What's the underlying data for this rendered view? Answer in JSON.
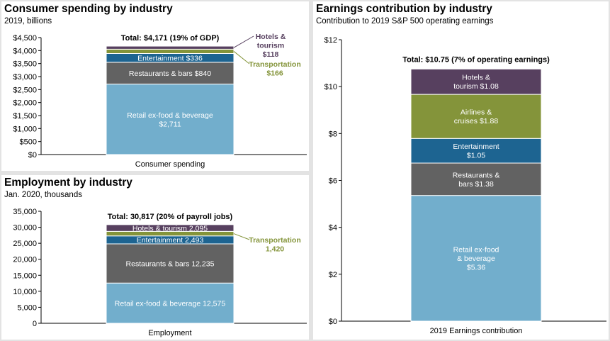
{
  "chart_data": [
    {
      "type": "bar",
      "stacked": true,
      "title": "Consumer spending by industry",
      "subtitle": "2019, billions",
      "categories": [
        "Consumer spending"
      ],
      "total_label": "Total: $4,171 (19% of GDP)",
      "yticks": [
        "$0",
        "$500",
        "$1,000",
        "$1,500",
        "$2,000",
        "$2,500",
        "$3,000",
        "$3,500",
        "$4,000",
        "$4,500"
      ],
      "ylim": [
        0,
        4500
      ],
      "grid": false,
      "series": [
        {
          "name": "Retail ex-food & beverage",
          "values": [
            2711
          ],
          "color": "#72aecc",
          "label_lines": [
            "Retail ex-food & beverage",
            "$2,711"
          ],
          "label_color": "#ffffff"
        },
        {
          "name": "Restaurants & bars",
          "values": [
            840
          ],
          "color": "#626262",
          "label_lines": [
            "Restaurants & bars  $840"
          ],
          "label_color": "#ffffff"
        },
        {
          "name": "Entertainment",
          "values": [
            336
          ],
          "color": "#1d6491",
          "label_lines": [
            "Entertainment  $336"
          ],
          "label_color": "#ffffff"
        },
        {
          "name": "Transportation",
          "values": [
            166
          ],
          "color": "#84943a",
          "label_lines": [
            "Transportation",
            "$166"
          ],
          "label_color": "#84943a",
          "outside": true
        },
        {
          "name": "Hotels & tourism",
          "values": [
            118
          ],
          "color": "#57405f",
          "label_lines": [
            "Hotels &",
            "tourism",
            "$118"
          ],
          "label_color": "#57405f",
          "outside": true
        }
      ]
    },
    {
      "type": "bar",
      "stacked": true,
      "title": "Employment by industry",
      "subtitle": "Jan. 2020, thousands",
      "categories": [
        "Employment"
      ],
      "total_label": "Total: 30,817 (20% of payroll jobs)",
      "yticks": [
        "0",
        "5,000",
        "10,000",
        "15,000",
        "20,000",
        "25,000",
        "30,000",
        "35,000"
      ],
      "ylim": [
        0,
        35000
      ],
      "grid": false,
      "series": [
        {
          "name": "Retail ex-food & beverage",
          "values": [
            12575
          ],
          "color": "#72aecc",
          "label_lines": [
            "Retail ex-food & beverage  12,575"
          ],
          "label_color": "#ffffff"
        },
        {
          "name": "Restaurants & bars",
          "values": [
            12235
          ],
          "color": "#626262",
          "label_lines": [
            "Restaurants & bars  12,235"
          ],
          "label_color": "#ffffff"
        },
        {
          "name": "Entertainment",
          "values": [
            2493
          ],
          "color": "#1d6491",
          "label_lines": [
            "Entertainment  2,493"
          ],
          "label_color": "#ffffff"
        },
        {
          "name": "Transportation",
          "values": [
            1420
          ],
          "color": "#84943a",
          "label_lines": [
            "Transportation",
            "1,420"
          ],
          "label_color": "#84943a",
          "outside": true
        },
        {
          "name": "Hotels & tourism",
          "values": [
            2095
          ],
          "color": "#57405f",
          "label_lines": [
            "Hotels & tourism  2,095"
          ],
          "label_color": "#ffffff"
        }
      ]
    },
    {
      "type": "bar",
      "stacked": true,
      "title": "Earnings contribution by industry",
      "subtitle": "Contribution to 2019 S&P 500 operating earnings",
      "categories": [
        "2019 Earnings contribution"
      ],
      "total_label": "Total: $10.75 (7% of operating earnings)",
      "yticks": [
        "$0",
        "$2",
        "$4",
        "$6",
        "$8",
        "$10",
        "$12"
      ],
      "ylim": [
        0,
        12
      ],
      "grid": false,
      "series": [
        {
          "name": "Retail ex-food & beverage",
          "values": [
            5.36
          ],
          "color": "#72aecc",
          "label_lines": [
            "Retail ex-food",
            "& beverage",
            "$5.36"
          ],
          "label_color": "#ffffff"
        },
        {
          "name": "Restaurants & bars",
          "values": [
            1.38
          ],
          "color": "#626262",
          "label_lines": [
            "Restaurants &",
            "bars  $1.38"
          ],
          "label_color": "#ffffff"
        },
        {
          "name": "Entertainment",
          "values": [
            1.05
          ],
          "color": "#1d6491",
          "label_lines": [
            "Entertainment",
            "$1.05"
          ],
          "label_color": "#ffffff"
        },
        {
          "name": "Airlines & cruises",
          "values": [
            1.88
          ],
          "color": "#84943a",
          "label_lines": [
            "Airlines &",
            "cruises  $1.88"
          ],
          "label_color": "#ffffff"
        },
        {
          "name": "Hotels & tourism",
          "values": [
            1.08
          ],
          "color": "#57405f",
          "label_lines": [
            "Hotels &",
            "tourism  $1.08"
          ],
          "label_color": "#ffffff"
        }
      ]
    }
  ]
}
